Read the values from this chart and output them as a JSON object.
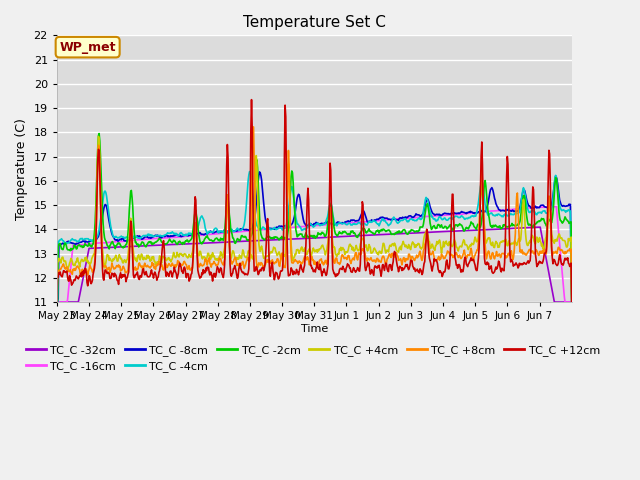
{
  "title": "Temperature Set C",
  "xlabel": "Time",
  "ylabel": "Temperature (C)",
  "ylim": [
    11.0,
    22.0
  ],
  "yticks": [
    11.0,
    12.0,
    13.0,
    14.0,
    15.0,
    16.0,
    17.0,
    18.0,
    19.0,
    20.0,
    21.0,
    22.0
  ],
  "plot_bg_color": "#dcdcdc",
  "fig_bg_color": "#f0f0f0",
  "legend_label": "WP_met",
  "series": [
    {
      "name": "TC_C -32cm",
      "color": "#9900cc"
    },
    {
      "name": "TC_C -16cm",
      "color": "#ff44ff"
    },
    {
      "name": "TC_C -8cm",
      "color": "#0000cc"
    },
    {
      "name": "TC_C -4cm",
      "color": "#00cccc"
    },
    {
      "name": "TC_C -2cm",
      "color": "#00cc00"
    },
    {
      "name": "TC_C +4cm",
      "color": "#cccc00"
    },
    {
      "name": "TC_C +8cm",
      "color": "#ff8800"
    },
    {
      "name": "TC_C +12cm",
      "color": "#cc0000"
    }
  ],
  "x_tick_labels": [
    "May 23",
    "May 24",
    "May 25",
    "May 26",
    "May 27",
    "May 28",
    "May 29",
    "May 30",
    "May 31",
    "Jun 1",
    "Jun 2",
    "Jun 3",
    "Jun 4",
    "Jun 5",
    "Jun 6",
    "Jun 7"
  ]
}
